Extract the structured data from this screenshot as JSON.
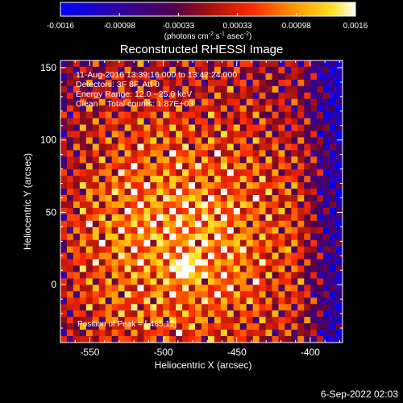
{
  "colorbar": {
    "ticks": [
      "-0.0016",
      "-0.00098",
      "-0.00033",
      "0.00033",
      "0.00098",
      "0.0016"
    ],
    "units_pre": "(photons cm",
    "units_sup1": "-2",
    "units_mid": " s",
    "units_sup2": "-1",
    "units_mid2": " asec",
    "units_sup3": "-2",
    "units_post": ")"
  },
  "header": {
    "time_range": "11-Aug-2016 13:39:16.000 to 13:42:24.000",
    "detectors": "Detectors: 3F 8F, Att 0",
    "energy": "Energy Range: 12.0 - 25.0 keV",
    "clean": "Clean    Total counts: 1.87E+03"
  },
  "peak_label": "Position of Peak = [-485,12]",
  "footer_date": "6-Sep-2022 02:03",
  "chart_data": {
    "type": "heatmap",
    "title": "Reconstructed RHESSI Image",
    "xlabel": "Heliocentric X (arcsec)",
    "ylabel": "Heliocentric Y (arcsec)",
    "xlim": [
      -570,
      -378
    ],
    "ylim": [
      -40,
      155
    ],
    "xticks": [
      -550,
      -500,
      -450,
      -400
    ],
    "yticks": [
      0,
      50,
      100,
      150
    ],
    "peak": {
      "x": -485,
      "y": 12
    },
    "colormap": "black-blue-purple-red-orange-yellow-white",
    "vmin": -0.0016,
    "vmax": 0.0016
  }
}
